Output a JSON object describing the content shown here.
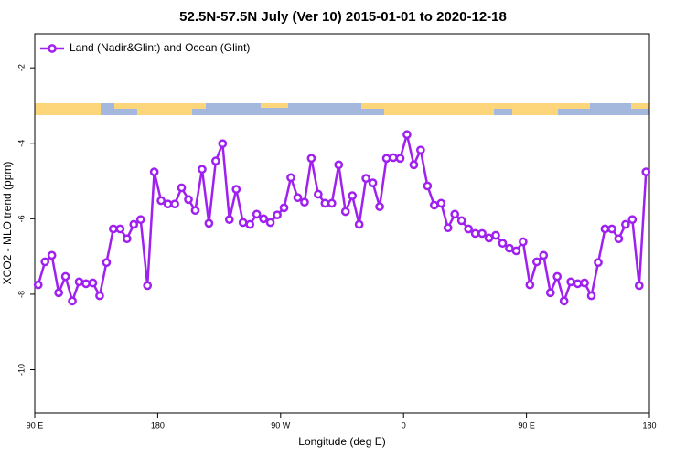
{
  "chart_data": {
    "type": "line",
    "title": "52.5N-57.5N July (Ver 10)   2015-01-01 to 2020-12-18",
    "x_label": "Longitude (deg E)",
    "y_label": "XCO2 - MLO trend (ppm)",
    "x": [
      92.5,
      97.5,
      102.5,
      107.5,
      112.5,
      117.5,
      122.5,
      127.5,
      132.5,
      137.5,
      142.5,
      147.5,
      152.5,
      157.5,
      162.5,
      167.5,
      172.5,
      177.5,
      182.5,
      187.5,
      192.5,
      197.5,
      202.5,
      207.5,
      212.5,
      217.5,
      222.5,
      227.5,
      232.5,
      237.5,
      242.5,
      247.5,
      252.5,
      257.5,
      262.5,
      267.5,
      272.5,
      277.5,
      282.5,
      287.5,
      292.5,
      297.5,
      302.5,
      307.5,
      312.5,
      317.5,
      322.5,
      327.5,
      332.5,
      337.5,
      342.5,
      347.5,
      352.5,
      357.5,
      362.5,
      367.5,
      372.5,
      377.5,
      382.5,
      387.5,
      392.5,
      397.5,
      402.5,
      407.5,
      412.5,
      417.5,
      422.5,
      427.5,
      432.5,
      437.5,
      442.5,
      447.5,
      452.5,
      457.5,
      462.5,
      467.5,
      472.5,
      477.5,
      482.5,
      487.5,
      492.5,
      497.5,
      502.5,
      507.5,
      512.5,
      517.5,
      522.5,
      527.5,
      532.5,
      537.5
    ],
    "series": [
      {
        "name": "Land (Nadir&Glint) and Ocean (Glint)",
        "color": "#a020f0",
        "values": [
          -7.75,
          -7.14,
          -6.97,
          -7.96,
          -7.53,
          -8.18,
          -7.67,
          -7.72,
          -7.7,
          -8.04,
          -7.16,
          -6.27,
          -6.27,
          -6.53,
          -6.15,
          -6.02,
          -7.77,
          -4.76,
          -5.52,
          -5.61,
          -5.61,
          -5.18,
          -5.49,
          -5.78,
          -4.69,
          -6.12,
          -4.47,
          -4.01,
          -6.02,
          -5.22,
          -6.1,
          -6.15,
          -5.88,
          -6.0,
          -6.1,
          -5.9,
          -5.71,
          -4.91,
          -5.44,
          -5.56,
          -4.4,
          -5.35,
          -5.59,
          -5.59,
          -4.57,
          -5.81,
          -5.39,
          -6.15,
          -4.93,
          -5.05,
          -5.68,
          -4.4,
          -4.38,
          -4.4,
          -3.77,
          -4.57,
          -4.18,
          -5.13,
          -5.64,
          -5.59,
          -6.24,
          -5.88,
          -6.05,
          -6.27,
          -6.39,
          -6.39,
          -6.51,
          -6.44,
          -6.65,
          -6.78,
          -6.85,
          -6.61,
          -7.75,
          -7.14,
          -6.97,
          -7.96,
          -7.53,
          -8.18,
          -7.67,
          -7.72,
          -7.7,
          -8.04,
          -7.16,
          -6.27,
          -6.27,
          -6.53,
          -6.15,
          -6.02,
          -7.77,
          -4.76
        ]
      }
    ],
    "xlim": [
      90,
      540
    ],
    "xticks": [
      {
        "value": 90,
        "label": "90 E"
      },
      180,
      {
        "value": 270,
        "label": "90 W"
      },
      {
        "value": 360,
        "label": "0"
      },
      {
        "value": 450,
        "label": "90 E"
      },
      {
        "value": 540,
        "label": "180"
      }
    ],
    "ylim": [
      -11.15,
      -1.1
    ],
    "yticks": [
      -2,
      -4,
      -6,
      -8,
      -10
    ],
    "legend": "top-left",
    "grid": false
  }
}
